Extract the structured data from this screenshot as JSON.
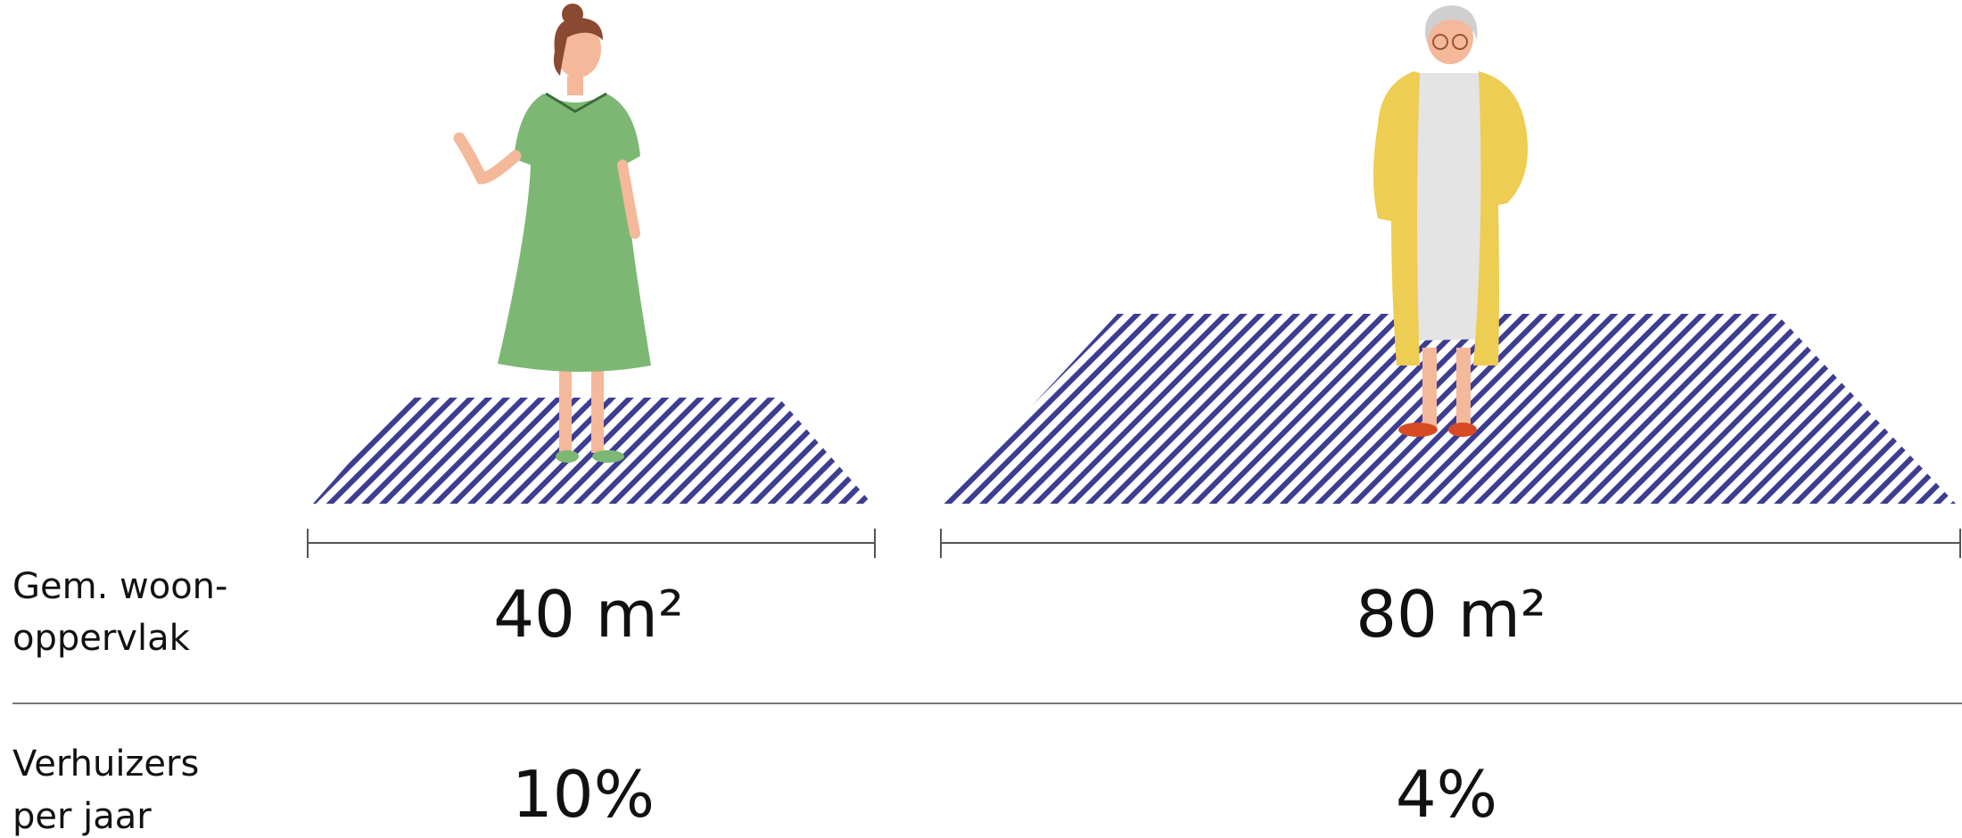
{
  "rows": [
    {
      "label": [
        "Gem. woon-",
        "oppervlak"
      ],
      "values": [
        "40 m²",
        "80 m²"
      ]
    },
    {
      "label": [
        "Verhuizers",
        "per jaar"
      ],
      "values": [
        "10%",
        "4%"
      ]
    }
  ]
}
